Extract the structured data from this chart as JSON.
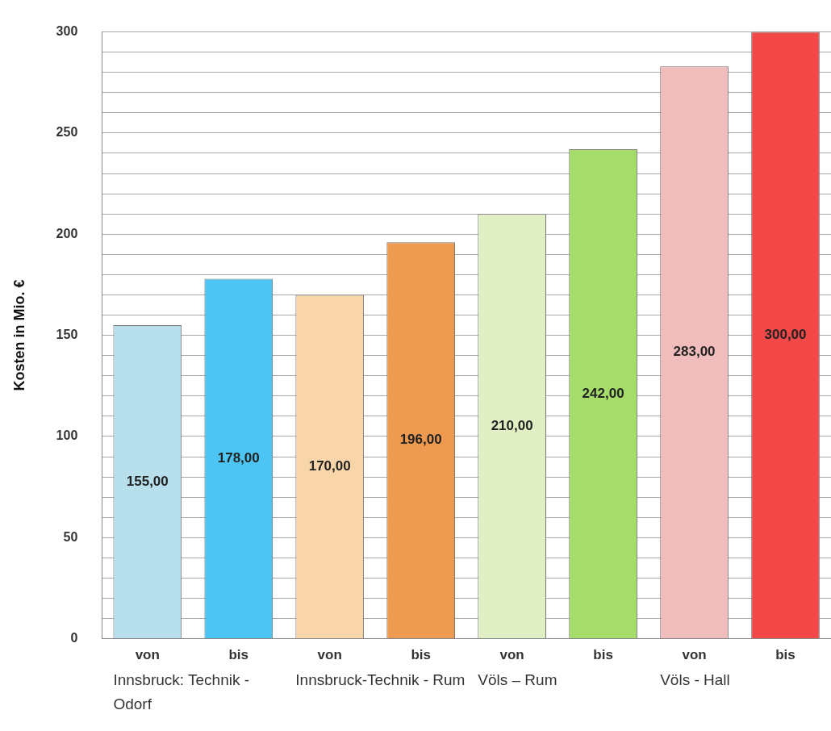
{
  "chart_data": {
    "type": "bar",
    "ylabel": "Kosten in Mio. €",
    "categories": [
      "von",
      "bis",
      "von",
      "bis",
      "von",
      "bis",
      "von",
      "bis"
    ],
    "values": [
      155,
      178,
      170,
      196,
      210,
      242,
      283,
      300
    ],
    "value_labels": [
      "155,00",
      "178,00",
      "170,00",
      "196,00",
      "210,00",
      "242,00",
      "283,00",
      "300,00"
    ],
    "colors": [
      "#b8e0ec",
      "#4cc4f4",
      "#f9d6aa",
      "#ee9a50",
      "#e0f0c4",
      "#a6dc6a",
      "#f0bcbc",
      "#f24848"
    ],
    "ylim": [
      0,
      300
    ],
    "yticks": [
      0,
      {
        "value": 10,
        "label": null
      },
      {
        "value": 20,
        "label": null
      },
      {
        "value": 30,
        "label": null
      },
      {
        "value": 40,
        "label": null
      },
      50,
      {
        "value": 60,
        "label": null
      },
      {
        "value": 70,
        "label": null
      },
      {
        "value": 80,
        "label": null
      },
      {
        "value": 90,
        "label": null
      },
      100,
      {
        "value": 110,
        "label": null
      },
      {
        "value": 120,
        "label": null
      },
      {
        "value": 130,
        "label": null
      },
      {
        "value": 140,
        "label": null
      },
      150,
      {
        "value": 160,
        "label": null
      },
      {
        "value": 170,
        "label": null
      },
      {
        "value": 180,
        "label": null
      },
      {
        "value": 190,
        "label": null
      },
      200,
      {
        "value": 210,
        "label": null
      },
      {
        "value": 220,
        "label": null
      },
      {
        "value": 230,
        "label": null
      },
      {
        "value": 240,
        "label": null
      },
      250,
      {
        "value": 260,
        "label": null
      },
      {
        "value": 270,
        "label": null
      },
      {
        "value": 280,
        "label": null
      },
      {
        "value": 290,
        "label": null
      },
      300
    ],
    "grid": "y",
    "annotations": [
      "Innsbruck: Technik - Odorf",
      "Innsbruck-Technik - Rum",
      "Völs – Rum",
      "Völs - Hall"
    ]
  }
}
